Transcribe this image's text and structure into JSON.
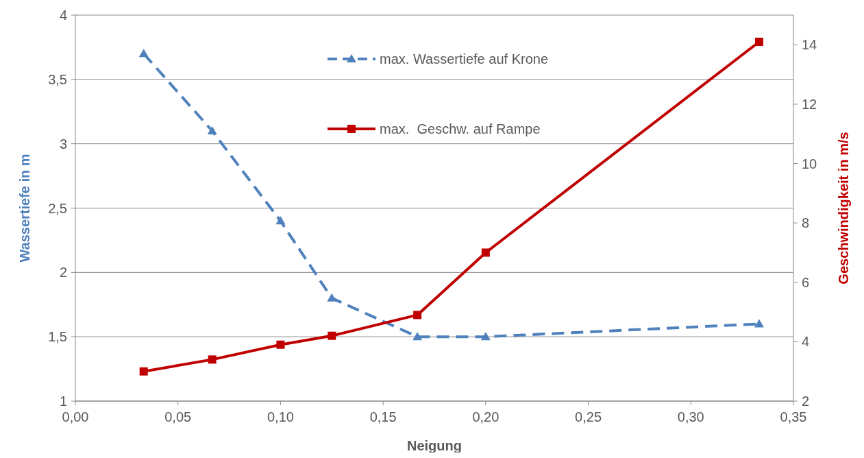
{
  "chart_data": {
    "type": "line",
    "xlabel": "Neigung",
    "ylabel": "Wassertiefe in m",
    "y2label": "Geschwindigkeit in m/s",
    "x": [
      0.0333,
      0.0667,
      0.1,
      0.125,
      0.1667,
      0.2,
      0.3333
    ],
    "series": [
      {
        "name": "max. Wassertiefe auf Krone",
        "color": "#4f81bd",
        "values": [
          3.7,
          3.1,
          2.4,
          1.8,
          1.5,
          1.5,
          1.6
        ],
        "marker": "triangle",
        "line_style": "dashed"
      },
      {
        "name": "max.  Geschw. auf Rampe",
        "color": "#c00000",
        "values": [
          3.0,
          3.4,
          3.9,
          4.2,
          4.9,
          7.0,
          14.1
        ],
        "marker": "square",
        "line_style": "solid",
        "axis": "y2"
      }
    ],
    "xlim": [
      0,
      0.35
    ],
    "xticks": [
      {
        "value": 0,
        "label": "0,00"
      },
      {
        "value": 0.05,
        "label": "0,05"
      },
      {
        "value": 0.1,
        "label": "0,10"
      },
      {
        "value": 0.15,
        "label": "0,15"
      },
      {
        "value": 0.2,
        "label": "0,20"
      },
      {
        "value": 0.25,
        "label": "0,25"
      },
      {
        "value": 0.3,
        "label": "0,30"
      },
      {
        "value": 0.35,
        "label": "0,35"
      }
    ],
    "ylim": [
      1,
      4
    ],
    "yticks": [
      1,
      {
        "value": 1.5,
        "label": "1,5"
      },
      2,
      {
        "value": 2.5,
        "label": "2,5"
      },
      3,
      {
        "value": 3.5,
        "label": "3,5"
      },
      4
    ],
    "y2lim": [
      2,
      15
    ],
    "y2ticks": [
      2,
      4,
      6,
      8,
      10,
      12,
      14
    ],
    "grid": "y",
    "legend": "top"
  }
}
